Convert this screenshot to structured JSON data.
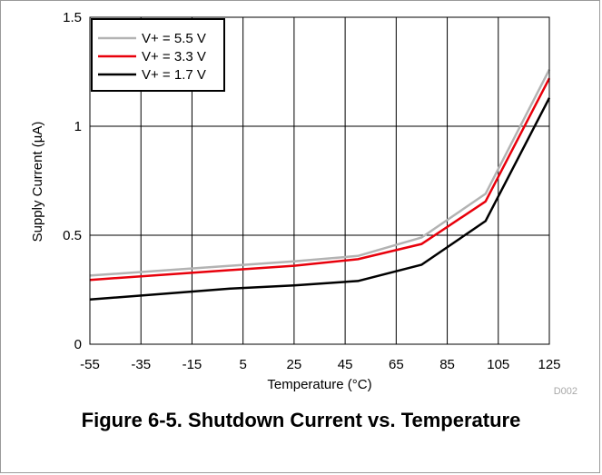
{
  "figure_caption": "Figure 6-5. Shutdown Current vs. Temperature",
  "figure_id": "D002",
  "colors": {
    "v55": "#b3b3b3",
    "v33": "#e8000b",
    "v17": "#000000",
    "grid": "#000000",
    "figure_id": "#a8a8a8"
  },
  "chart_data": {
    "type": "line",
    "xlabel": "Temperature (°C)",
    "ylabel": "Supply Current (µA)",
    "xlim": [
      -55,
      125
    ],
    "ylim": [
      0,
      1.5
    ],
    "x_ticks": [
      -55,
      -35,
      -15,
      5,
      25,
      45,
      65,
      85,
      105,
      125
    ],
    "y_ticks": [
      0,
      0.5,
      1,
      1.5
    ],
    "y_tick_labels": [
      "0",
      "0.5",
      "1",
      "1.5"
    ],
    "grid": true,
    "legend_position": "top-left",
    "series": [
      {
        "name": "V+ = 5.5 V",
        "color": "#b3b3b3",
        "x": [
          -55,
          0,
          25,
          50,
          75,
          100,
          125
        ],
        "y": [
          0.315,
          0.36,
          0.38,
          0.405,
          0.49,
          0.69,
          1.26
        ]
      },
      {
        "name": "V+ = 3.3 V",
        "color": "#e8000b",
        "x": [
          -55,
          0,
          25,
          50,
          75,
          100,
          125
        ],
        "y": [
          0.295,
          0.34,
          0.36,
          0.39,
          0.46,
          0.655,
          1.22
        ]
      },
      {
        "name": "V+ = 1.7 V",
        "color": "#000000",
        "x": [
          -55,
          0,
          25,
          50,
          75,
          100,
          125
        ],
        "y": [
          0.205,
          0.255,
          0.27,
          0.29,
          0.365,
          0.565,
          1.13
        ]
      }
    ]
  }
}
